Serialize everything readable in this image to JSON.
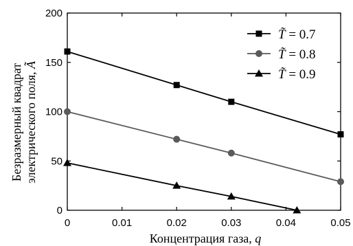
{
  "chart_data": {
    "type": "line",
    "title": "",
    "xlabel": "Концентрация газа,",
    "xlabel_var": "q",
    "ylabel_line1": "Безразмерный квадрат",
    "ylabel_line2": "электрического поля,",
    "ylabel_var": "Ã",
    "xlim": [
      0,
      0.05
    ],
    "ylim": [
      0,
      200
    ],
    "x_ticks": [
      0,
      0.01,
      0.02,
      0.03,
      0.04,
      0.05
    ],
    "x_tick_labels": [
      "0",
      "0.01",
      "0.02",
      "0.03",
      "0.04",
      "0.05"
    ],
    "y_ticks": [
      0,
      50,
      100,
      150,
      200
    ],
    "y_tick_labels": [
      "0",
      "50",
      "100",
      "150",
      "200"
    ],
    "grid": false,
    "legend_position": "top-right",
    "series": [
      {
        "name": "T̃ = 0.7",
        "legend_var": "T̃",
        "legend_value": "= 0.7",
        "marker": "square",
        "color": "#000000",
        "x": [
          0,
          0.02,
          0.03,
          0.05
        ],
        "y": [
          161,
          127,
          110,
          77
        ]
      },
      {
        "name": "T̃ = 0.8",
        "legend_var": "T̃",
        "legend_value": "= 0.8",
        "marker": "circle",
        "color": "#5a5a5a",
        "x": [
          0,
          0.02,
          0.03,
          0.05
        ],
        "y": [
          100,
          72,
          58,
          29
        ]
      },
      {
        "name": "T̃ = 0.9",
        "legend_var": "T̃",
        "legend_value": "= 0.9",
        "marker": "triangle",
        "color": "#000000",
        "x": [
          0,
          0.02,
          0.03,
          0.042
        ],
        "y": [
          48,
          25,
          14,
          0
        ]
      }
    ]
  }
}
